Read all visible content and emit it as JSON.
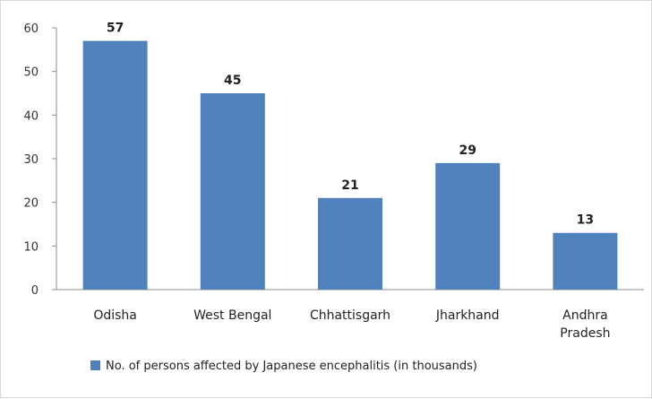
{
  "chart_data": {
    "type": "bar",
    "categories": [
      "Odisha",
      "West Bengal",
      "Chhattisgarh",
      "Jharkhand",
      "Andhra Pradesh"
    ],
    "category_lines": [
      [
        "Odisha"
      ],
      [
        "West Bengal"
      ],
      [
        "Chhattisgarh"
      ],
      [
        "Jharkhand"
      ],
      [
        "Andhra",
        "Pradesh"
      ]
    ],
    "series": [
      {
        "name": "No. of persons affected by Japanese encephalitis (in thousands)",
        "values": [
          57,
          45,
          21,
          29,
          13
        ]
      }
    ],
    "data_labels": [
      "57",
      "45",
      "21",
      "29",
      "13"
    ],
    "ylim": [
      0,
      60
    ],
    "yticks": [
      0,
      10,
      20,
      30,
      40,
      50,
      60
    ],
    "title": "",
    "xlabel": "",
    "ylabel": "",
    "grid": false,
    "legend_position": "bottom",
    "colors": {
      "bar": "#4f81bd",
      "axis": "#8c8c8c"
    }
  }
}
